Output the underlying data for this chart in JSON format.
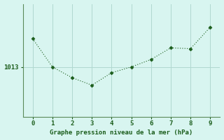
{
  "x": [
    0,
    1,
    2,
    3,
    4,
    5,
    6,
    7,
    8,
    9
  ],
  "y": [
    1014.7,
    1013.0,
    1012.35,
    1011.9,
    1012.65,
    1013.0,
    1013.45,
    1014.15,
    1014.1,
    1015.4
  ],
  "line_color": "#1a5c1a",
  "marker_color": "#1a5c1a",
  "bg_color": "#d8f5f0",
  "grid_color": "#b0d8d0",
  "xlabel": "Graphe pression niveau de la mer (hPa)",
  "xlabel_color": "#1a5c1a",
  "tick_label_color": "#1a5c1a",
  "ytick_label": "1013",
  "ytick_value": 1013.0,
  "xlim": [
    -0.5,
    9.5
  ],
  "ylim": [
    1010.0,
    1016.8
  ],
  "border_color": "#3d7a3d",
  "axis_line_color": "#5a8a5a"
}
